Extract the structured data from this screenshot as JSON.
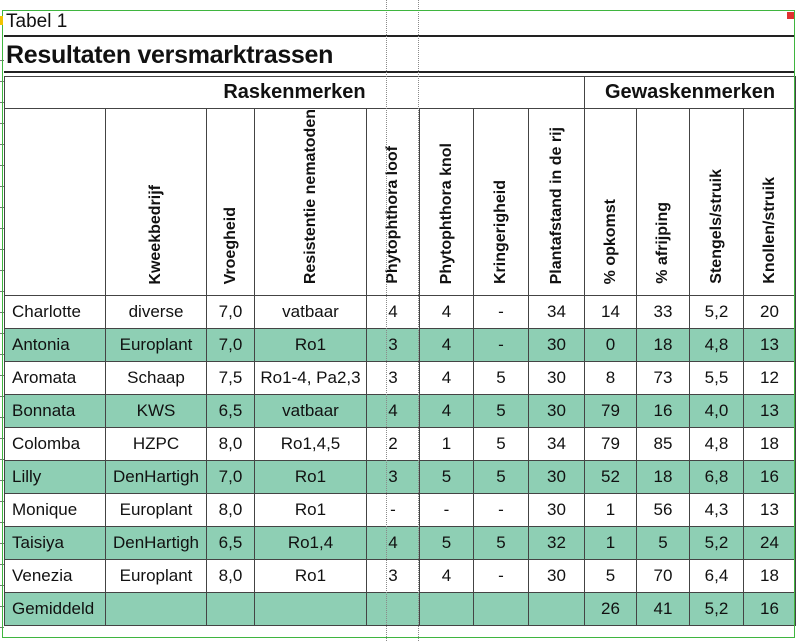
{
  "table_label": "Tabel 1",
  "title": "Resultaten versmarktrassen",
  "groups": {
    "raskenmerken": "Raskenmerken",
    "gewaskenmerken": "Gewaskenmerken"
  },
  "columns": [
    "",
    "Kweekbedrijf",
    "Vroegheid",
    "Resistentie nematoden",
    "Phytophthora loof",
    "Phytophthora knol",
    "Kringerigheid",
    "Plantafstand in de rij",
    "% opkomst",
    "% afrijping",
    "Stengels/struik",
    "Knollen/struik"
  ],
  "rows": [
    [
      "Charlotte",
      "diverse",
      "7,0",
      "vatbaar",
      "4",
      "4",
      "-",
      "34",
      "14",
      "33",
      "5,2",
      "20"
    ],
    [
      "Antonia",
      "Europlant",
      "7,0",
      "Ro1",
      "3",
      "4",
      "-",
      "30",
      "0",
      "18",
      "4,8",
      "13"
    ],
    [
      "Aromata",
      "Schaap",
      "7,5",
      "Ro1-4, Pa2,3",
      "3",
      "4",
      "5",
      "30",
      "8",
      "73",
      "5,5",
      "12"
    ],
    [
      "Bonnata",
      "KWS",
      "6,5",
      "vatbaar",
      "4",
      "4",
      "5",
      "30",
      "79",
      "16",
      "4,0",
      "13"
    ],
    [
      "Colomba",
      "HZPC",
      "8,0",
      "Ro1,4,5",
      "2",
      "1",
      "5",
      "34",
      "79",
      "85",
      "4,8",
      "18"
    ],
    [
      "Lilly",
      "DenHartigh",
      "7,0",
      "Ro1",
      "3",
      "5",
      "5",
      "30",
      "52",
      "18",
      "6,8",
      "16"
    ],
    [
      "Monique",
      "Europlant",
      "8,0",
      "Ro1",
      "-",
      "-",
      "-",
      "30",
      "1",
      "56",
      "4,3",
      "13"
    ],
    [
      "Taisiya",
      "DenHartigh",
      "6,5",
      "Ro1,4",
      "4",
      "5",
      "5",
      "32",
      "1",
      "5",
      "5,2",
      "24"
    ],
    [
      "Venezia",
      "Europlant",
      "8,0",
      "Ro1",
      "3",
      "4",
      "-",
      "30",
      "5",
      "70",
      "6,4",
      "18"
    ]
  ],
  "average": [
    "Gemiddeld",
    "",
    "",
    "",
    "",
    "",
    "",
    "",
    "26",
    "41",
    "5,2",
    "16"
  ],
  "colors": {
    "row_highlight": "#8ecfb4",
    "frame": "#3fb53f"
  }
}
